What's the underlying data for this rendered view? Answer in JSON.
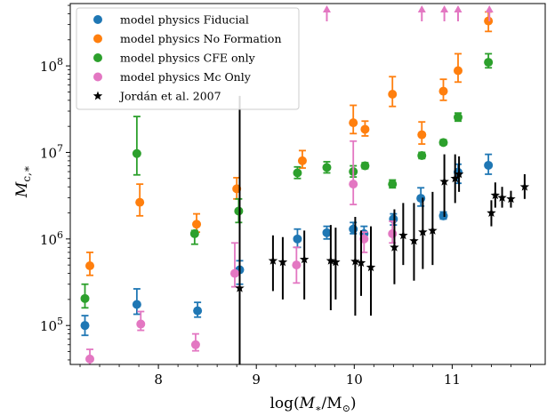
{
  "chart_data": {
    "type": "scatter",
    "title": "",
    "xlabel_main": "log(",
    "xlabel_var": "M",
    "xlabel_sub": "∗",
    "xlabel_unit": "/M",
    "xlabel_unit_sub": "⊙",
    "xlabel_close": ")",
    "ylabel_var": "M",
    "ylabel_sub": "c,∗",
    "xlim": [
      7.1,
      11.95
    ],
    "ylim_log10": [
      4.55,
      8.72
    ],
    "yscale": "log",
    "grid": false,
    "legend_position": "top-left",
    "xticks": [
      8,
      9,
      10,
      11
    ],
    "xtick_labels": [
      "8",
      "9",
      "10",
      "11"
    ],
    "yticks_exp": [
      5,
      6,
      7,
      8
    ],
    "ytick_base": "10",
    "ytick_exps": [
      "5",
      "6",
      "7",
      "8"
    ],
    "series": [
      {
        "name": "model physics Fiducial",
        "color": "#1f77b4",
        "marker": "circle",
        "points": [
          {
            "x": 7.25,
            "y": 100000,
            "lo": 77000,
            "hi": 130000
          },
          {
            "x": 7.78,
            "y": 175000,
            "lo": 135000,
            "hi": 265000
          },
          {
            "x": 8.4,
            "y": 148000,
            "lo": 125000,
            "hi": 185000
          },
          {
            "x": 8.83,
            "y": 440000,
            "lo": 300000,
            "hi": 560000
          },
          {
            "x": 9.42,
            "y": 1000000,
            "lo": 800000,
            "hi": 1300000
          },
          {
            "x": 9.72,
            "y": 1180000,
            "lo": 1000000,
            "hi": 1400000
          },
          {
            "x": 9.99,
            "y": 1300000,
            "lo": 1150000,
            "hi": 1550000
          },
          {
            "x": 10.1,
            "y": 1150000,
            "lo": 1000000,
            "hi": 1400000
          },
          {
            "x": 10.4,
            "y": 1700000,
            "lo": 1450000,
            "hi": 1950000
          },
          {
            "x": 10.68,
            "y": 2950000,
            "lo": 2400000,
            "hi": 3900000
          },
          {
            "x": 10.91,
            "y": 1850000,
            "lo": 1700000,
            "hi": 2050000
          },
          {
            "x": 11.06,
            "y": 5900000,
            "lo": 4400000,
            "hi": 7300000
          },
          {
            "x": 11.37,
            "y": 7100000,
            "lo": 5600000,
            "hi": 9500000
          }
        ]
      },
      {
        "name": "model physics No Formation",
        "color": "#ff7f0e",
        "marker": "circle",
        "points": [
          {
            "x": 7.3,
            "y": 490000,
            "lo": 380000,
            "hi": 700000
          },
          {
            "x": 7.81,
            "y": 2650000,
            "lo": 1850000,
            "hi": 4300000
          },
          {
            "x": 8.39,
            "y": 1480000,
            "lo": 1200000,
            "hi": 1950000
          },
          {
            "x": 8.8,
            "y": 3800000,
            "lo": 2900000,
            "hi": 5100000
          },
          {
            "x": 9.47,
            "y": 8000000,
            "lo": 6600000,
            "hi": 10500000
          },
          {
            "x": 9.99,
            "y": 22000000,
            "lo": 16500000,
            "hi": 35000000
          },
          {
            "x": 10.11,
            "y": 18500000,
            "lo": 15500000,
            "hi": 23000000
          },
          {
            "x": 10.39,
            "y": 47000000,
            "lo": 34000000,
            "hi": 75000000
          },
          {
            "x": 10.69,
            "y": 16000000,
            "lo": 12500000,
            "hi": 22500000
          },
          {
            "x": 10.91,
            "y": 51000000,
            "lo": 40000000,
            "hi": 70000000
          },
          {
            "x": 11.06,
            "y": 88000000,
            "lo": 65000000,
            "hi": 138000000
          },
          {
            "x": 11.37,
            "y": 330000000,
            "lo": 250000000,
            "hi": 420000000
          }
        ]
      },
      {
        "name": "model physics CFE only",
        "color": "#2ca02c",
        "marker": "circle",
        "points": [
          {
            "x": 7.25,
            "y": 205000,
            "lo": 160000,
            "hi": 300000
          },
          {
            "x": 7.78,
            "y": 9700000,
            "lo": 5500000,
            "hi": 26000000
          },
          {
            "x": 8.37,
            "y": 1150000,
            "lo": 870000,
            "hi": 1250000
          },
          {
            "x": 8.82,
            "y": 2100000,
            "lo": 1550000,
            "hi": 2900000
          },
          {
            "x": 9.42,
            "y": 5800000,
            "lo": 5000000,
            "hi": 6800000
          },
          {
            "x": 9.72,
            "y": 6700000,
            "lo": 5800000,
            "hi": 7800000
          },
          {
            "x": 9.99,
            "y": 6000000,
            "lo": 5200000,
            "hi": 7000000
          },
          {
            "x": 10.11,
            "y": 7000000,
            "lo": 6500000,
            "hi": 7600000
          },
          {
            "x": 10.39,
            "y": 4300000,
            "lo": 3900000,
            "hi": 4800000
          },
          {
            "x": 10.69,
            "y": 9200000,
            "lo": 8500000,
            "hi": 10000000
          },
          {
            "x": 10.91,
            "y": 13000000,
            "lo": 12200000,
            "hi": 14000000
          },
          {
            "x": 11.06,
            "y": 25500000,
            "lo": 23000000,
            "hi": 28500000
          },
          {
            "x": 11.37,
            "y": 110000000,
            "lo": 95000000,
            "hi": 138000000
          }
        ]
      },
      {
        "name": "model physics Mc Only",
        "color": "#e377c2",
        "marker": "circle",
        "points": [
          {
            "x": 7.3,
            "y": 41000,
            "lo": 33000,
            "hi": 53000
          },
          {
            "x": 7.82,
            "y": 104000,
            "lo": 88000,
            "hi": 145000
          },
          {
            "x": 8.38,
            "y": 60000,
            "lo": 51000,
            "hi": 80000
          },
          {
            "x": 8.78,
            "y": 400000,
            "lo": 280000,
            "hi": 900000
          },
          {
            "x": 9.41,
            "y": 500000,
            "lo": 310000,
            "hi": 800000
          },
          {
            "x": 9.99,
            "y": 4300000,
            "lo": 2500000,
            "hi": 13500000
          },
          {
            "x": 10.1,
            "y": 1000000,
            "lo": 700000,
            "hi": 1200000
          },
          {
            "x": 10.39,
            "y": 1150000,
            "lo": 900000,
            "hi": 1600000
          }
        ]
      },
      {
        "name": "Jordán et al. 2007",
        "color": "#000000",
        "marker": "star",
        "points": [
          {
            "x": 8.83,
            "y": 270000,
            "lo": 30000,
            "hi": 45000000
          },
          {
            "x": 9.17,
            "y": 560000,
            "lo": 250000,
            "hi": 1100000
          },
          {
            "x": 9.27,
            "y": 540000,
            "lo": 200000,
            "hi": 1050000
          },
          {
            "x": 9.49,
            "y": 580000,
            "lo": 200000,
            "hi": 1250000
          },
          {
            "x": 9.76,
            "y": 560000,
            "lo": 150000,
            "hi": 1450000
          },
          {
            "x": 9.81,
            "y": 540000,
            "lo": 200000,
            "hi": 1350000
          },
          {
            "x": 10.01,
            "y": 550000,
            "lo": 130000,
            "hi": 1800000
          },
          {
            "x": 10.07,
            "y": 530000,
            "lo": 220000,
            "hi": 1250000
          },
          {
            "x": 10.17,
            "y": 470000,
            "lo": 130000,
            "hi": 1400000
          },
          {
            "x": 10.41,
            "y": 800000,
            "lo": 300000,
            "hi": 2200000
          },
          {
            "x": 10.5,
            "y": 1100000,
            "lo": 500000,
            "hi": 2600000
          },
          {
            "x": 10.61,
            "y": 950000,
            "lo": 330000,
            "hi": 2600000
          },
          {
            "x": 10.7,
            "y": 1200000,
            "lo": 450000,
            "hi": 3000000
          },
          {
            "x": 10.8,
            "y": 1250000,
            "lo": 500000,
            "hi": 3500000
          },
          {
            "x": 10.92,
            "y": 4600000,
            "lo": 1800000,
            "hi": 9500000
          },
          {
            "x": 11.03,
            "y": 5000000,
            "lo": 2600000,
            "hi": 9500000
          },
          {
            "x": 11.07,
            "y": 5600000,
            "lo": 3500000,
            "hi": 9000000
          },
          {
            "x": 11.4,
            "y": 2000000,
            "lo": 1400000,
            "hi": 2800000
          },
          {
            "x": 11.44,
            "y": 3200000,
            "lo": 2300000,
            "hi": 4500000
          },
          {
            "x": 11.51,
            "y": 3000000,
            "lo": 2300000,
            "hi": 4000000
          },
          {
            "x": 11.6,
            "y": 2900000,
            "lo": 2300000,
            "hi": 3600000
          },
          {
            "x": 11.74,
            "y": 4000000,
            "lo": 2900000,
            "hi": 5600000
          }
        ]
      }
    ],
    "lower_limits": {
      "color": "#e377c2",
      "marker": "up-arrow",
      "x": [
        9.72,
        10.69,
        10.92,
        11.06,
        11.38
      ]
    }
  }
}
